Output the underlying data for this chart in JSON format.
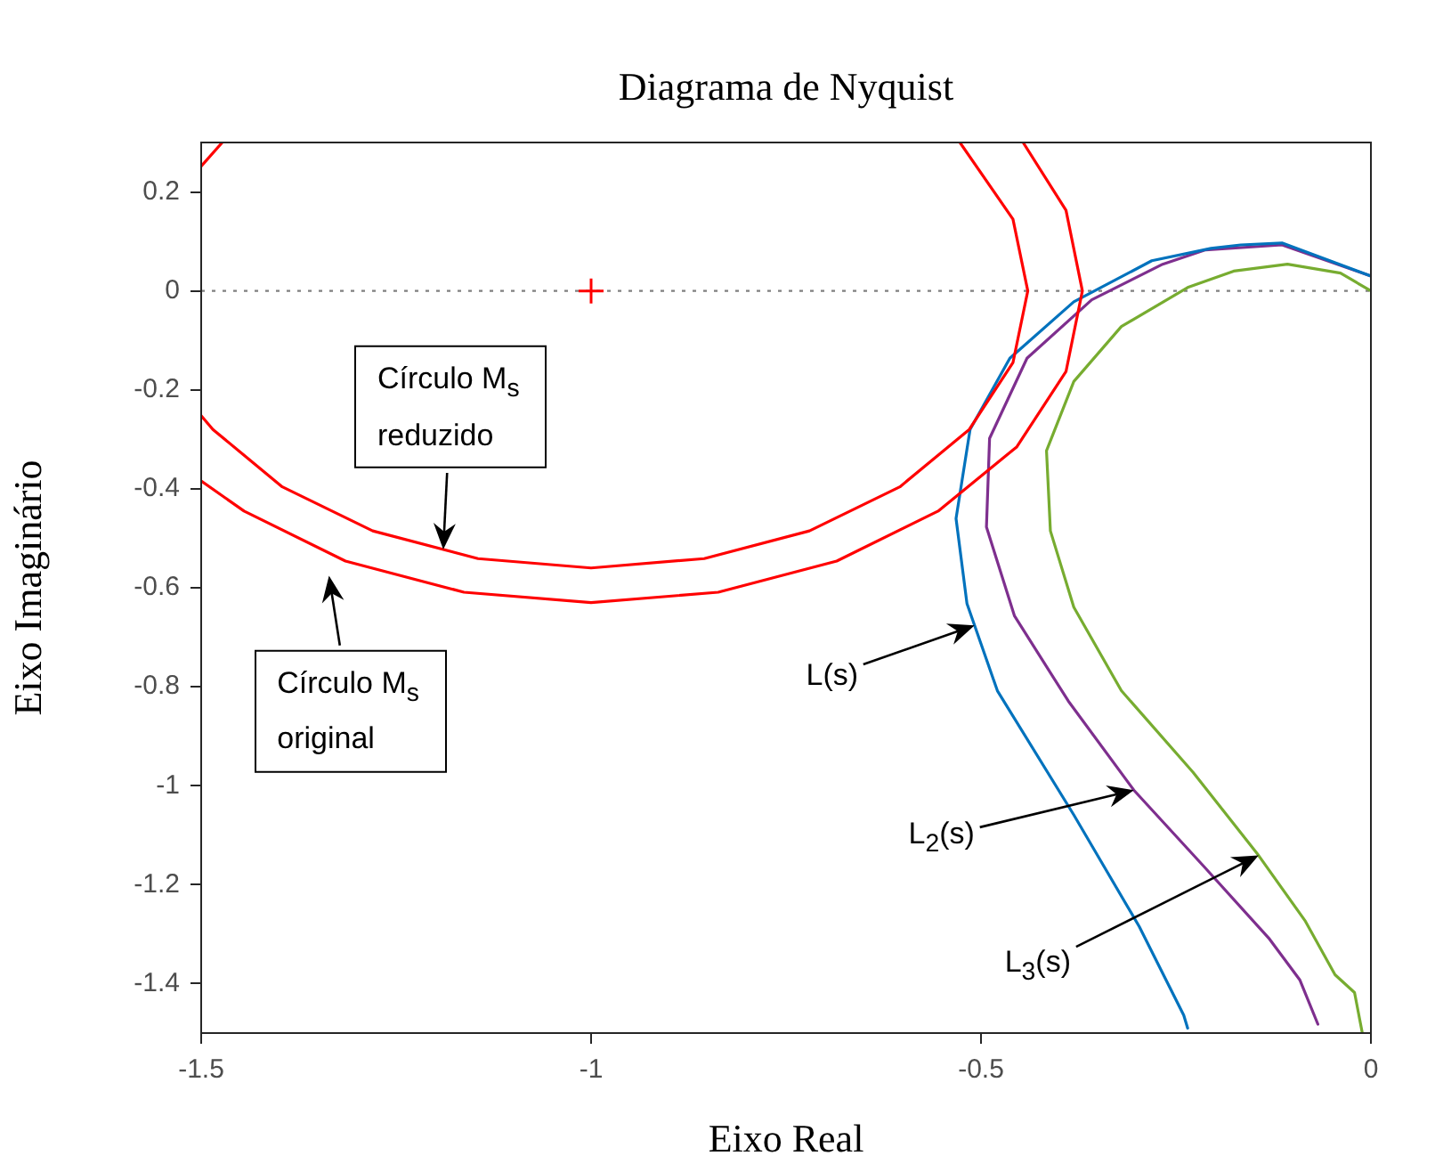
{
  "chart_data": {
    "type": "line",
    "title": "Diagrama de Nyquist",
    "xlabel": "Eixo Real",
    "ylabel": "Eixo Imaginário",
    "xlim": [
      -1.5,
      0
    ],
    "xticks": [
      -1.5,
      -1,
      -0.5,
      0
    ],
    "ylim": [
      -1.5,
      0.3
    ],
    "yticks": [
      -1.4,
      -1.2,
      -1,
      -0.8,
      -0.6,
      -0.4,
      -0.2,
      0,
      0.2
    ],
    "grid": false,
    "legend": false,
    "series": [
      {
        "type": "line",
        "name": "Círculo M$_{s}$ reduzido",
        "color": "#ff0000",
        "x": [
          -0.527,
          -0.459,
          -0.44,
          -0.459,
          -0.515,
          -0.604,
          -0.72,
          -0.855,
          -1,
          -1.145,
          -1.28,
          -1.396,
          -1.485,
          -1.5
        ],
        "values": [
          0.3,
          0.145,
          0,
          -0.145,
          -0.28,
          -0.396,
          -0.485,
          -0.541,
          -0.56,
          -0.541,
          -0.485,
          -0.396,
          -0.28,
          -0.252
        ]
      },
      {
        "type": "line",
        "color": "#ff0000",
        "x": [
          -1.5,
          -1.473
        ],
        "values": [
          0.252,
          0.3
        ]
      },
      {
        "type": "line",
        "name": "Círculo M$_{s}$ original",
        "color": "#ff0000",
        "x": [
          -0.446,
          -0.391,
          -0.37,
          -0.391,
          -0.454,
          -0.555,
          -0.685,
          -0.837,
          -1,
          -1.163,
          -1.315,
          -1.445,
          -1.5
        ],
        "values": [
          0.3,
          0.163,
          0,
          -0.163,
          -0.315,
          -0.445,
          -0.546,
          -0.609,
          -0.63,
          -0.609,
          -0.546,
          -0.445,
          -0.384
        ]
      },
      {
        "type": "scatter",
        "color": "#ff0000",
        "marker": "cross",
        "x": [
          -1
        ],
        "values": [
          0
        ]
      },
      {
        "type": "line",
        "name": "L(s)",
        "color": "#0072bd",
        "x": [
          0,
          -0.114,
          -0.167,
          -0.205,
          -0.281,
          -0.381,
          -0.463,
          -0.514,
          -0.532,
          -0.518,
          -0.479,
          -0.381,
          -0.297,
          -0.24,
          -0.235
        ],
        "values": [
          0.03,
          0.097,
          0.093,
          0.086,
          0.061,
          -0.022,
          -0.136,
          -0.28,
          -0.46,
          -0.632,
          -0.808,
          -1.059,
          -1.285,
          -1.464,
          -1.49
        ]
      },
      {
        "type": "line",
        "name": "L$_{2}$(s)",
        "color": "#7e2f8e",
        "x": [
          0,
          -0.114,
          -0.212,
          -0.267,
          -0.358,
          -0.441,
          -0.489,
          -0.493,
          -0.457,
          -0.388,
          -0.304,
          -0.212,
          -0.13,
          -0.091,
          -0.068
        ],
        "values": [
          0.03,
          0.093,
          0.083,
          0.054,
          -0.018,
          -0.136,
          -0.298,
          -0.477,
          -0.657,
          -0.829,
          -1.009,
          -1.167,
          -1.31,
          -1.393,
          -1.482
        ]
      },
      {
        "type": "line",
        "color": "#77ac30",
        "x": [
          0,
          -0.039,
          -0.107,
          -0.176,
          -0.235,
          -0.32,
          -0.381,
          -0.416,
          -0.411,
          -0.381,
          -0.32,
          -0.228,
          -0.144,
          -0.084,
          -0.046,
          -0.021,
          -0.011
        ],
        "values": [
          0,
          0.036,
          0.054,
          0.04,
          0.007,
          -0.072,
          -0.183,
          -0.323,
          -0.485,
          -0.639,
          -0.808,
          -0.973,
          -1.141,
          -1.274,
          -1.382,
          -1.418,
          -1.5
        ]
      }
    ],
    "ref_lines": [
      {
        "axis": "y",
        "value": 0,
        "color": "#808080",
        "line_style": "dotted"
      }
    ],
    "annotations": [
      {
        "text": "L$_{3}$(s)",
        "x": -0.144,
        "y": -1.141
      }
    ]
  }
}
